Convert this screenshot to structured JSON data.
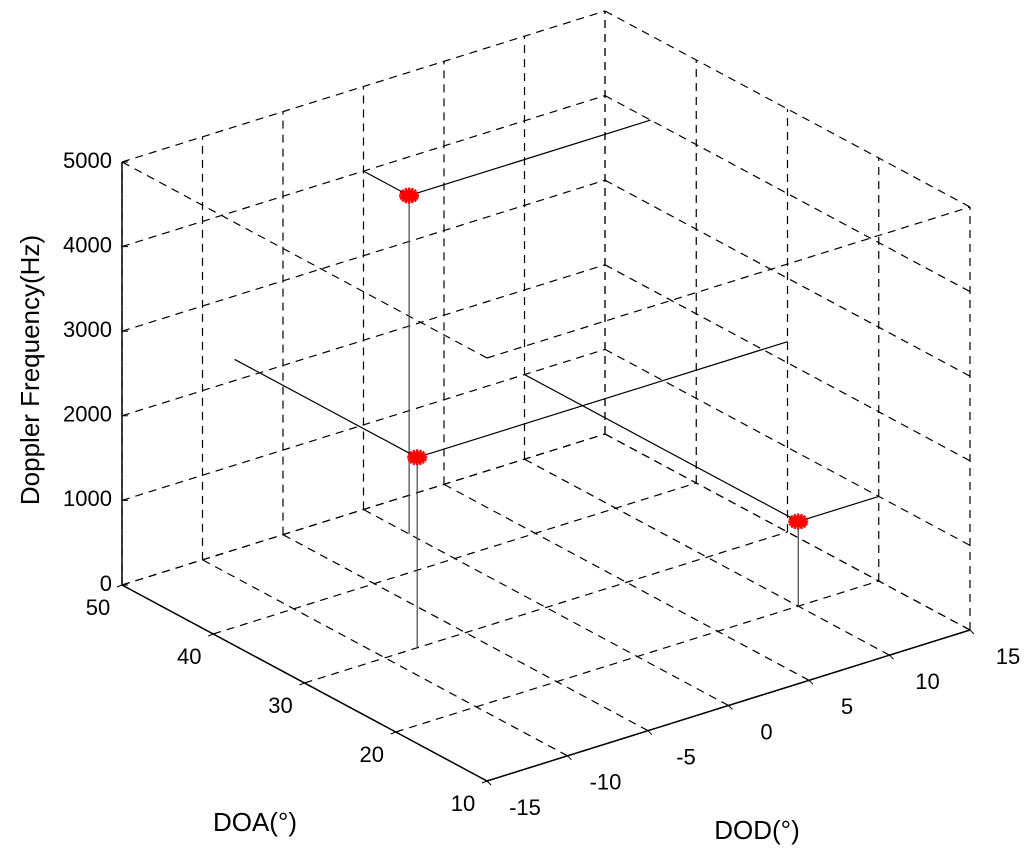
{
  "chart_data": {
    "type": "scatter3d",
    "xlabel": "DOD(°)",
    "ylabel": "DOA(°)",
    "zlabel": "Doppler Frequency(Hz)",
    "series": [
      {
        "color": "#ff0000",
        "x": [
          0,
          -8,
          10
        ],
        "y": [
          45,
          30,
          20
        ],
        "z": [
          4000,
          2250,
          1000
        ]
      }
    ],
    "xlim": [
      -15,
      15
    ],
    "xticks": [
      -15,
      -10,
      -5,
      0,
      5,
      10,
      15
    ],
    "ylim": [
      10,
      50
    ],
    "yticks": [
      10,
      20,
      30,
      40,
      50
    ],
    "zlim": [
      0,
      5000
    ],
    "zticks": [
      0,
      1000,
      2000,
      3000,
      4000,
      5000
    ],
    "grid": true
  }
}
